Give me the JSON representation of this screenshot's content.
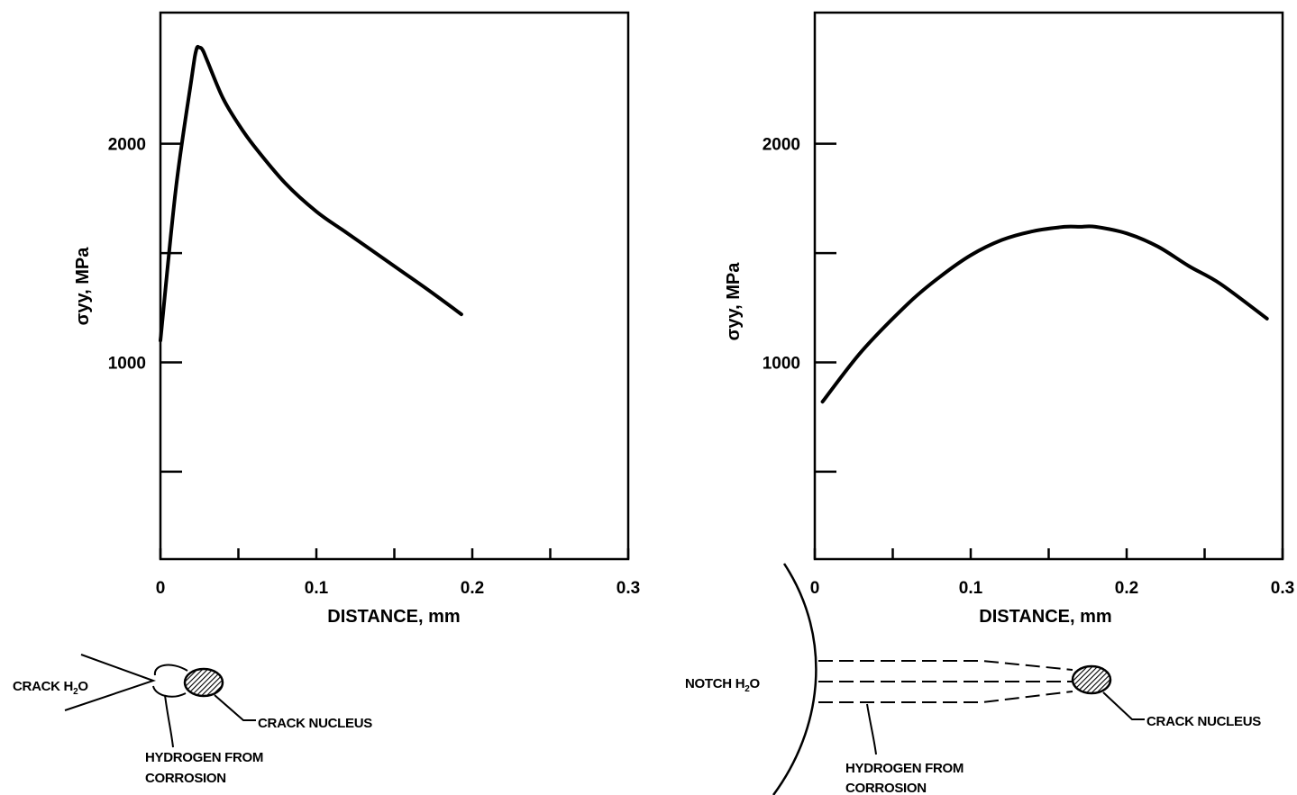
{
  "chart_data": [
    {
      "type": "line",
      "panel": "left",
      "xlabel": "DISTANCE, mm",
      "ylabel": "σyy, MPa",
      "xlim": [
        0,
        0.3
      ],
      "ylim": [
        100,
        2600
      ],
      "xticks": [
        0,
        0.05,
        0.1,
        0.15,
        0.2,
        0.25,
        0.3
      ],
      "xtick_labels": [
        "0",
        "",
        "0.1",
        "",
        "0.2",
        "",
        "0.3"
      ],
      "yticks": [
        500,
        1000,
        1500,
        2000
      ],
      "ytick_labels": [
        "",
        "1000",
        "",
        "2000"
      ],
      "series": [
        {
          "x": [
            0,
            0.01,
            0.02,
            0.023,
            0.025,
            0.027,
            0.03,
            0.04,
            0.05,
            0.06,
            0.08,
            0.1,
            0.12,
            0.15,
            0.17,
            0.193
          ],
          "y": [
            1100,
            1800,
            2300,
            2430,
            2440,
            2430,
            2380,
            2210,
            2090,
            1990,
            1820,
            1690,
            1590,
            1440,
            1340,
            1220
          ]
        }
      ],
      "diagram": {
        "crack_label": "CRACK H",
        "crack_label_sub": "2",
        "crack_label_end": "O",
        "nucleus_label": "CRACK NUCLEUS",
        "hydrogen_label_1": "HYDROGEN FROM",
        "hydrogen_label_2": "CORROSION"
      }
    },
    {
      "type": "line",
      "panel": "right",
      "xlabel": "DISTANCE, mm",
      "ylabel": "σyy, MPa",
      "xlim": [
        0,
        0.3
      ],
      "ylim": [
        100,
        2600
      ],
      "xticks": [
        0,
        0.05,
        0.1,
        0.15,
        0.2,
        0.25,
        0.3
      ],
      "xtick_labels": [
        "0",
        "",
        "0.1",
        "",
        "0.2",
        "",
        "0.3"
      ],
      "yticks": [
        500,
        1000,
        1500,
        2000
      ],
      "ytick_labels": [
        "",
        "1000",
        "",
        "2000"
      ],
      "series": [
        {
          "x": [
            0.005,
            0.03,
            0.06,
            0.08,
            0.1,
            0.12,
            0.14,
            0.16,
            0.17,
            0.18,
            0.2,
            0.22,
            0.24,
            0.26,
            0.29
          ],
          "y": [
            820,
            1050,
            1270,
            1390,
            1490,
            1560,
            1600,
            1620,
            1620,
            1620,
            1590,
            1530,
            1440,
            1360,
            1200
          ]
        }
      ],
      "diagram": {
        "notch_label": "NOTCH H",
        "notch_label_sub": "2",
        "notch_label_end": "O",
        "nucleus_label": "CRACK NUCLEUS",
        "hydrogen_label_1": "HYDROGEN FROM",
        "hydrogen_label_2": "CORROSION"
      }
    }
  ],
  "colors": {
    "ink": "#000000",
    "background": "#ffffff"
  }
}
